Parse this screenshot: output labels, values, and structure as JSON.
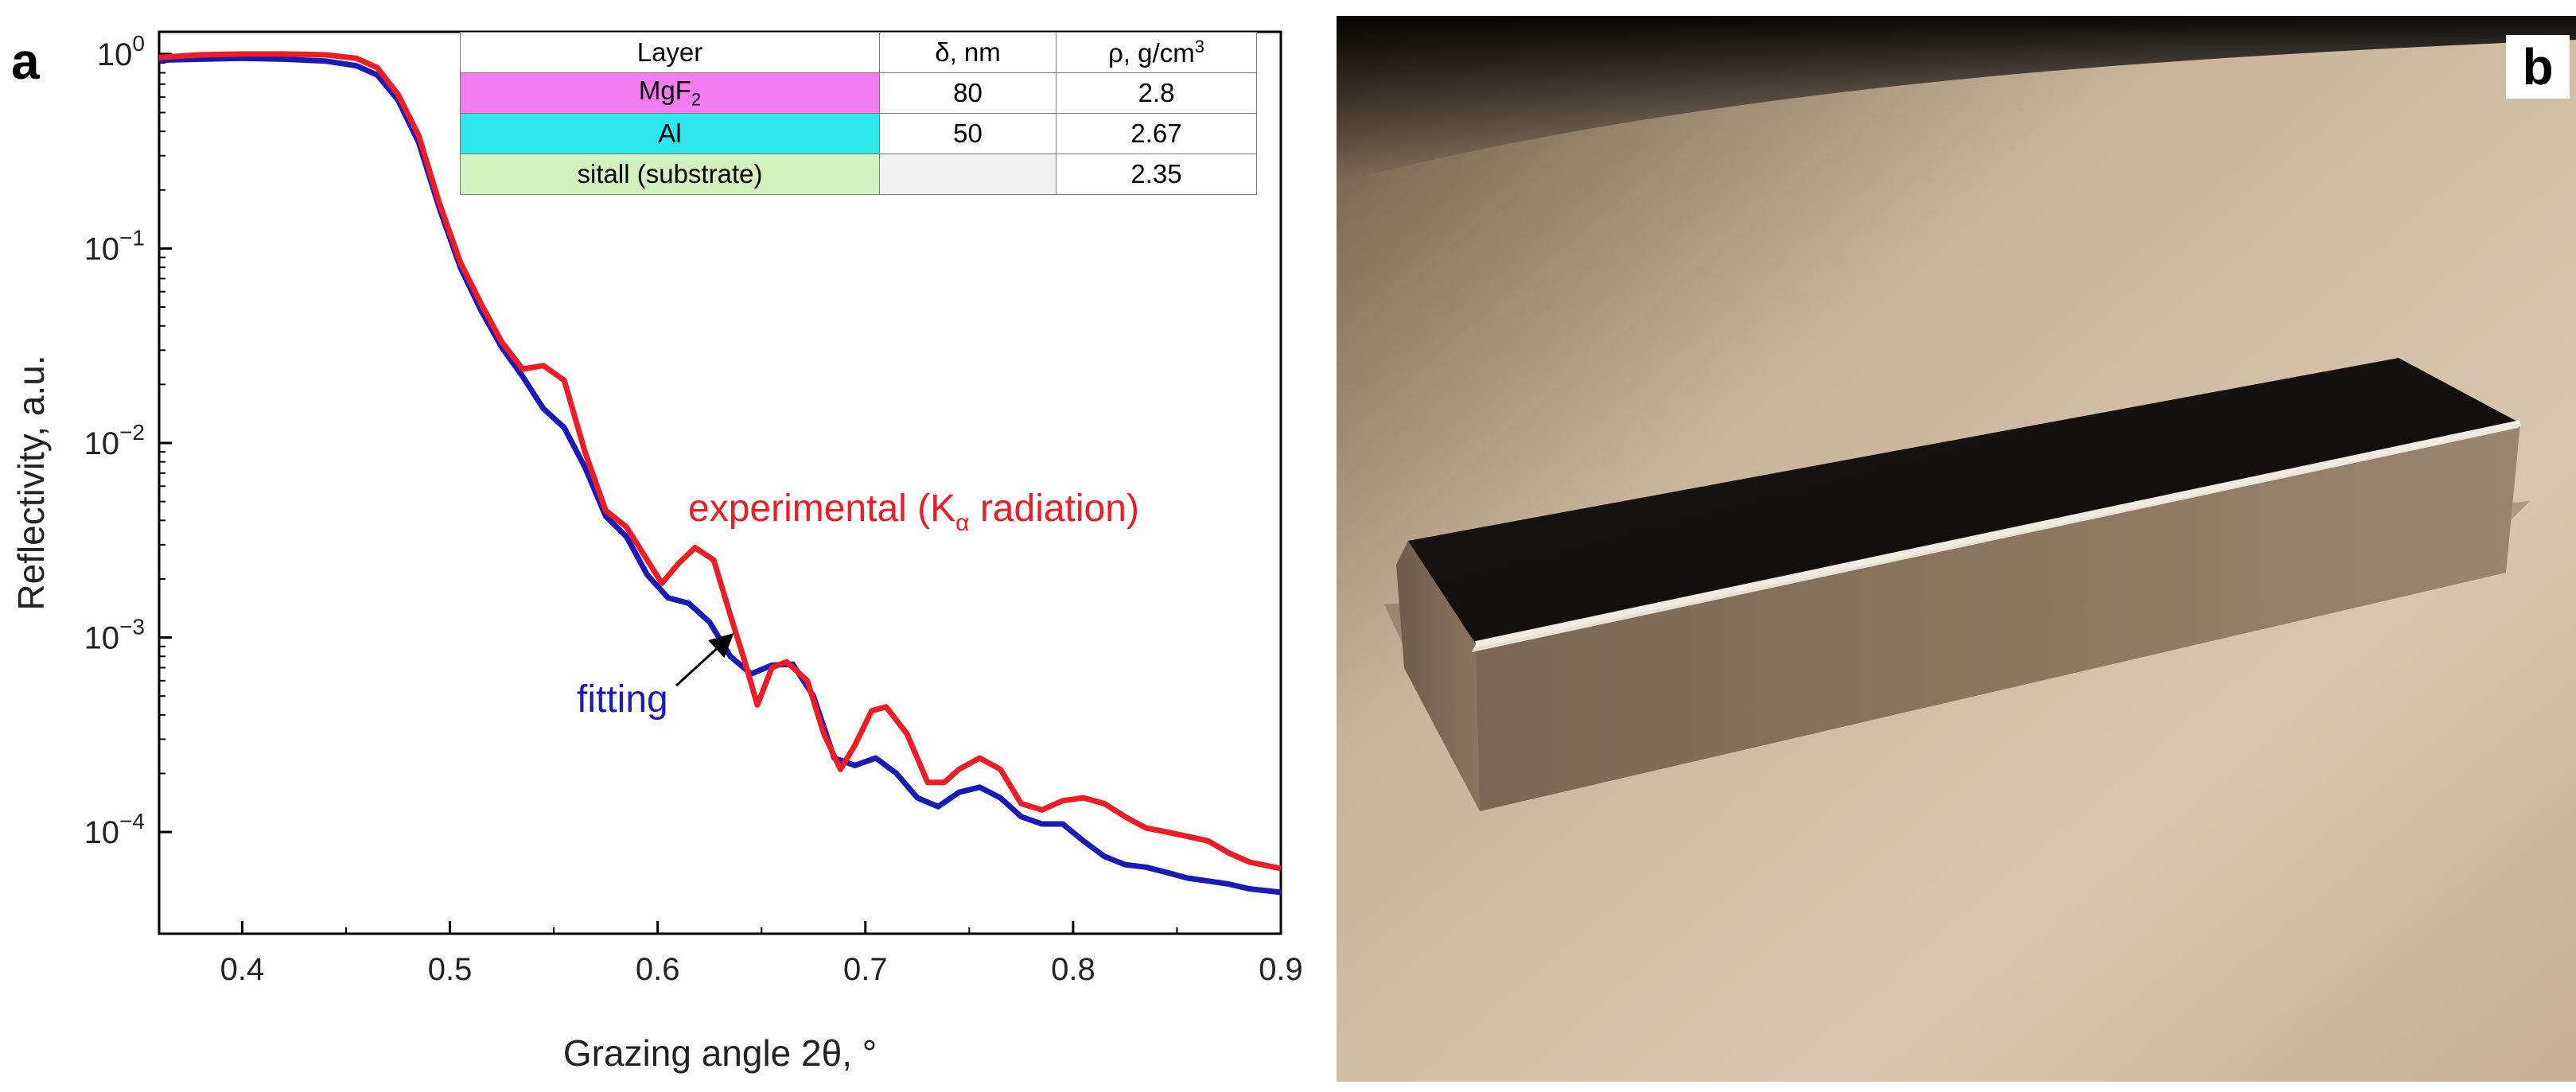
{
  "panel_a": {
    "letter": "a",
    "table": {
      "headers": [
        "Layer",
        "δ, nm",
        "ρ, g/cm",
        "3"
      ],
      "rows": [
        {
          "layer": "MgF",
          "layer_sub": "2",
          "thickness": "80",
          "density": "2.8",
          "color": "#f27cf0"
        },
        {
          "layer": "Al",
          "layer_sub": "",
          "thickness": "50",
          "density": "2.67",
          "color": "#2ee6ee"
        },
        {
          "layer": "sitall (substrate)",
          "layer_sub": "",
          "thickness": "",
          "density": "2.35",
          "color": "#d2f2c0"
        }
      ],
      "empty_cell_color": "#f2f2f2"
    },
    "annotations": {
      "experimental_main": "experimental (K",
      "experimental_sub": "α",
      "experimental_tail": " radiation)",
      "fitting": "fitting"
    }
  },
  "panel_b": {
    "letter": "b"
  },
  "chart_data": {
    "type": "line",
    "title": "",
    "xlabel": "Grazing angle 2θ, °",
    "ylabel": "Reflectivity, a.u.",
    "xlim": [
      0.36,
      0.9
    ],
    "ylim": [
      3e-05,
      1.3
    ],
    "yscale": "log",
    "x_ticks": [
      0.4,
      0.5,
      0.6,
      0.7,
      0.8,
      0.9
    ],
    "x_tick_labels": [
      "0.4",
      "0.5",
      "0.6",
      "0.7",
      "0.8",
      "0.9"
    ],
    "y_ticks": [
      1,
      0.1,
      0.01,
      0.001,
      0.0001
    ],
    "y_tick_labels": [
      {
        "base": "10",
        "exp": "0"
      },
      {
        "base": "10",
        "exp": "−1"
      },
      {
        "base": "10",
        "exp": "−2"
      },
      {
        "base": "10",
        "exp": "−3"
      },
      {
        "base": "10",
        "exp": "−4"
      }
    ],
    "series": [
      {
        "name": "experimental",
        "color": "#ee1c24",
        "points": [
          [
            0.36,
            0.96
          ],
          [
            0.38,
            0.99
          ],
          [
            0.4,
            1.0
          ],
          [
            0.42,
            1.0
          ],
          [
            0.44,
            0.99
          ],
          [
            0.455,
            0.95
          ],
          [
            0.465,
            0.85
          ],
          [
            0.475,
            0.62
          ],
          [
            0.485,
            0.38
          ],
          [
            0.495,
            0.17
          ],
          [
            0.505,
            0.085
          ],
          [
            0.515,
            0.052
          ],
          [
            0.525,
            0.033
          ],
          [
            0.535,
            0.024
          ],
          [
            0.545,
            0.025
          ],
          [
            0.555,
            0.021
          ],
          [
            0.565,
            0.009
          ],
          [
            0.575,
            0.0045
          ],
          [
            0.585,
            0.0037
          ],
          [
            0.595,
            0.0025
          ],
          [
            0.602,
            0.0019
          ],
          [
            0.61,
            0.0024
          ],
          [
            0.618,
            0.0029
          ],
          [
            0.627,
            0.0025
          ],
          [
            0.635,
            0.0013
          ],
          [
            0.642,
            0.00075
          ],
          [
            0.648,
            0.00045
          ],
          [
            0.655,
            0.0007
          ],
          [
            0.662,
            0.00075
          ],
          [
            0.672,
            0.0006
          ],
          [
            0.68,
            0.00032
          ],
          [
            0.688,
            0.00021
          ],
          [
            0.695,
            0.00028
          ],
          [
            0.703,
            0.00042
          ],
          [
            0.71,
            0.00044
          ],
          [
            0.72,
            0.00032
          ],
          [
            0.73,
            0.00018
          ],
          [
            0.738,
            0.00018
          ],
          [
            0.745,
            0.00021
          ],
          [
            0.755,
            0.00024
          ],
          [
            0.765,
            0.00021
          ],
          [
            0.775,
            0.00014
          ],
          [
            0.785,
            0.00013
          ],
          [
            0.795,
            0.000145
          ],
          [
            0.805,
            0.00015
          ],
          [
            0.815,
            0.00014
          ],
          [
            0.825,
            0.00012
          ],
          [
            0.835,
            0.000105
          ],
          [
            0.845,
            0.0001
          ],
          [
            0.855,
            9.5e-05
          ],
          [
            0.865,
            9e-05
          ],
          [
            0.875,
            7.8e-05
          ],
          [
            0.885,
            7e-05
          ],
          [
            0.9,
            6.5e-05
          ]
        ]
      },
      {
        "name": "fitting",
        "color": "#1a1ab8",
        "points": [
          [
            0.36,
            0.93
          ],
          [
            0.38,
            0.94
          ],
          [
            0.4,
            0.95
          ],
          [
            0.42,
            0.94
          ],
          [
            0.44,
            0.92
          ],
          [
            0.455,
            0.87
          ],
          [
            0.465,
            0.78
          ],
          [
            0.475,
            0.58
          ],
          [
            0.485,
            0.35
          ],
          [
            0.495,
            0.16
          ],
          [
            0.505,
            0.08
          ],
          [
            0.515,
            0.048
          ],
          [
            0.525,
            0.031
          ],
          [
            0.535,
            0.022
          ],
          [
            0.545,
            0.015
          ],
          [
            0.555,
            0.012
          ],
          [
            0.565,
            0.0075
          ],
          [
            0.575,
            0.0042
          ],
          [
            0.585,
            0.0033
          ],
          [
            0.595,
            0.0021
          ],
          [
            0.605,
            0.0016
          ],
          [
            0.615,
            0.0015
          ],
          [
            0.625,
            0.0012
          ],
          [
            0.635,
            0.0008
          ],
          [
            0.645,
            0.00065
          ],
          [
            0.655,
            0.00072
          ],
          [
            0.665,
            0.00073
          ],
          [
            0.675,
            0.0005
          ],
          [
            0.685,
            0.00024
          ],
          [
            0.695,
            0.00022
          ],
          [
            0.705,
            0.00024
          ],
          [
            0.715,
            0.0002
          ],
          [
            0.725,
            0.00015
          ],
          [
            0.735,
            0.000135
          ],
          [
            0.745,
            0.00016
          ],
          [
            0.755,
            0.00017
          ],
          [
            0.765,
            0.00015
          ],
          [
            0.775,
            0.00012
          ],
          [
            0.785,
            0.00011
          ],
          [
            0.795,
            0.00011
          ],
          [
            0.805,
            9e-05
          ],
          [
            0.815,
            7.5e-05
          ],
          [
            0.825,
            6.8e-05
          ],
          [
            0.835,
            6.6e-05
          ],
          [
            0.845,
            6.2e-05
          ],
          [
            0.855,
            5.8e-05
          ],
          [
            0.865,
            5.6e-05
          ],
          [
            0.875,
            5.4e-05
          ],
          [
            0.885,
            5.1e-05
          ],
          [
            0.9,
            4.9e-05
          ]
        ]
      }
    ]
  }
}
